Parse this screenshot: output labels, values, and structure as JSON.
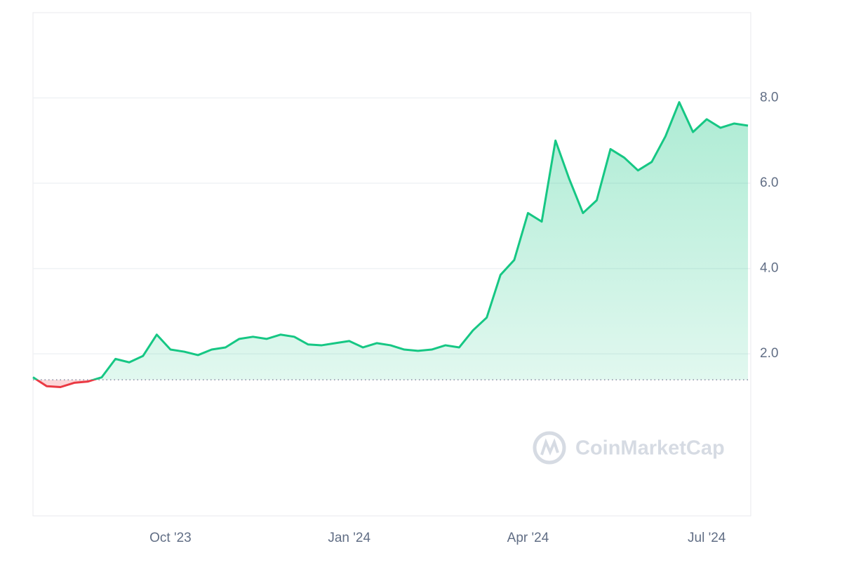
{
  "chart_data": {
    "type": "line",
    "categories": [
      null,
      null,
      null,
      null,
      null,
      null,
      null,
      null,
      null,
      null,
      "Oct '23",
      null,
      null,
      null,
      null,
      null,
      null,
      null,
      null,
      null,
      null,
      null,
      null,
      "Jan '24",
      null,
      null,
      null,
      null,
      null,
      null,
      null,
      null,
      null,
      null,
      null,
      null,
      "Apr '24",
      null,
      null,
      null,
      null,
      null,
      null,
      null,
      null,
      null,
      null,
      null,
      null,
      "Jul '24",
      null,
      null,
      null
    ],
    "series": [
      {
        "values": [
          1.45,
          1.24,
          1.22,
          1.32,
          1.35,
          1.45,
          1.88,
          1.8,
          1.95,
          2.45,
          2.1,
          2.05,
          1.97,
          2.1,
          2.15,
          2.35,
          2.4,
          2.35,
          2.45,
          2.4,
          2.22,
          2.2,
          2.25,
          2.3,
          2.15,
          2.25,
          2.2,
          2.1,
          2.07,
          2.1,
          2.2,
          2.15,
          2.55,
          2.85,
          3.85,
          4.2,
          5.3,
          5.1,
          7.0,
          6.1,
          5.3,
          5.6,
          6.8,
          6.6,
          6.3,
          6.5,
          7.1,
          7.9,
          7.2,
          7.5,
          7.3,
          7.4,
          7.35
        ],
        "color": "#16c784",
        "down_color": "#ea3943"
      }
    ],
    "baseline": 1.39,
    "ylim": [
      -1.8,
      10
    ],
    "yticks": [
      {
        "value": 2,
        "label": "2.0"
      },
      {
        "value": 4,
        "label": "4.0"
      },
      {
        "value": 6,
        "label": "6.0"
      },
      {
        "value": 8,
        "label": "8.0"
      }
    ],
    "grid": true,
    "watermark": "CoinMarketCap"
  }
}
